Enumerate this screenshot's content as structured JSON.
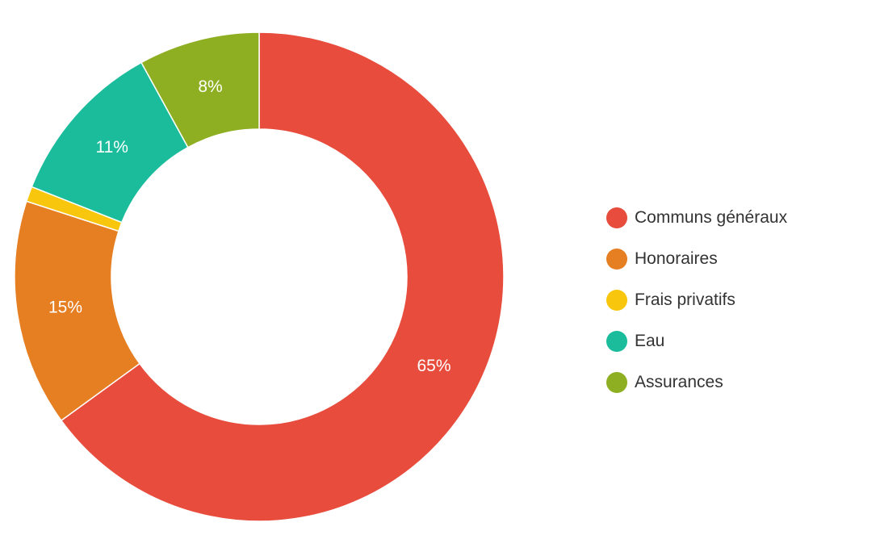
{
  "chart_data": {
    "type": "pie",
    "title": "",
    "hole": true,
    "legend_position": "right",
    "categories": [
      "Communs généraux",
      "Honoraires",
      "Frais privatifs",
      "Eau",
      "Assurances"
    ],
    "values": [
      65,
      15,
      1,
      11,
      8
    ],
    "data_labels": [
      "65%",
      "15%",
      "",
      "11%",
      "8%"
    ],
    "colors": [
      "#e74c3c",
      "#e67e22",
      "#f8c70d",
      "#1abc9c",
      "#8faf22"
    ]
  }
}
